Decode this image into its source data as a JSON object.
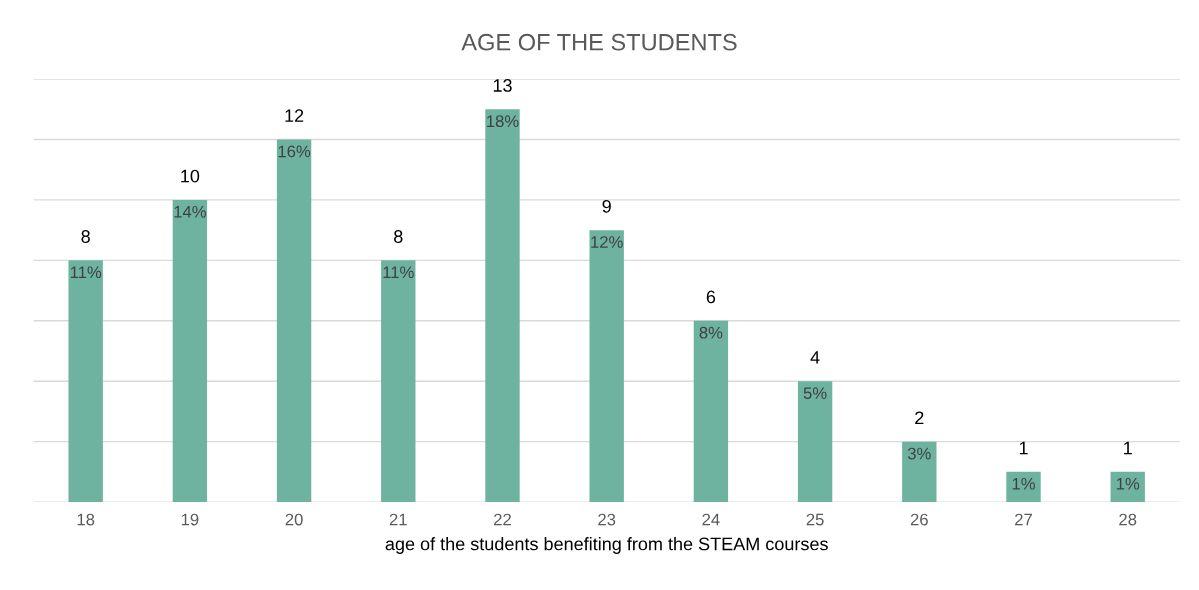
{
  "chart_data": {
    "type": "bar",
    "title": "AGE OF THE STUDENTS",
    "xlabel": "age of the students benefiting from the STEAM courses",
    "categories": [
      "18",
      "19",
      "20",
      "21",
      "22",
      "23",
      "24",
      "25",
      "26",
      "27",
      "28"
    ],
    "values": [
      8,
      10,
      12,
      8,
      13,
      9,
      6,
      4,
      2,
      1,
      1
    ],
    "color": "#6db3a0",
    "ylim": [
      0,
      14
    ],
    "yticks": [
      {
        "value": 0,
        "label": null
      },
      {
        "value": 2,
        "label": null
      },
      {
        "value": 4,
        "label": null
      },
      {
        "value": 6,
        "label": null
      },
      {
        "value": 8,
        "label": null
      },
      {
        "value": 10,
        "label": null
      },
      {
        "value": 12,
        "label": null
      },
      {
        "value": 14,
        "label": null
      }
    ],
    "tick_labels": "x",
    "grid": "y",
    "legend": false,
    "data_labels": true,
    "annotations": [
      {
        "text": "11%",
        "x": "18",
        "y": 8
      },
      {
        "text": "14%",
        "x": "19",
        "y": 10
      },
      {
        "text": "16%",
        "x": "20",
        "y": 12
      },
      {
        "text": "11%",
        "x": "21",
        "y": 8
      },
      {
        "text": "18%",
        "x": "22",
        "y": 13
      },
      {
        "text": "12%",
        "x": "23",
        "y": 9
      },
      {
        "text": "8%",
        "x": "24",
        "y": 6
      },
      {
        "text": "5%",
        "x": "25",
        "y": 4
      },
      {
        "text": "3%",
        "x": "26",
        "y": 2
      },
      {
        "text": "1%",
        "x": "27",
        "y": 1
      },
      {
        "text": "1%",
        "x": "28",
        "y": 1
      }
    ]
  }
}
